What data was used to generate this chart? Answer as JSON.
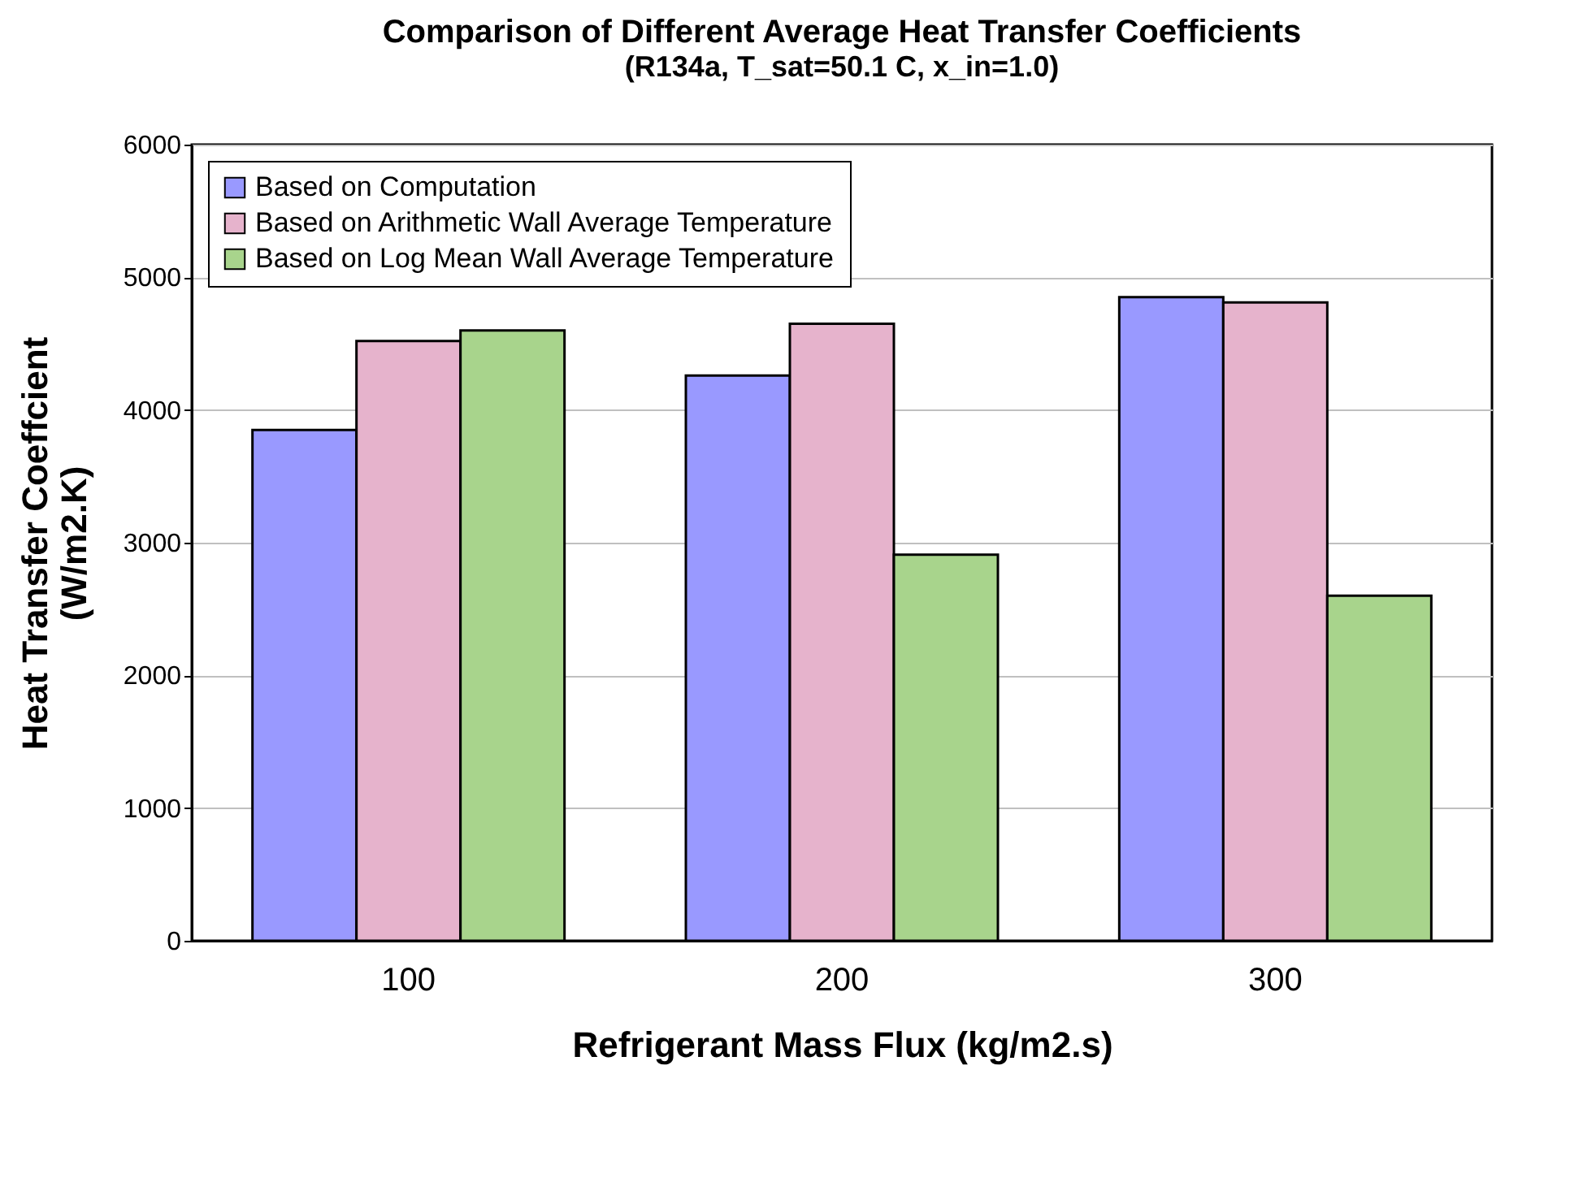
{
  "chart_data": {
    "type": "bar",
    "title": "Comparison of Different Average Heat Transfer Coefficients",
    "subtitle": "(R134a, T_sat=50.1 C, x_in=1.0)",
    "xlabel": "Refrigerant Mass Flux (kg/m2.s)",
    "ylabel": "Heat Transfer Coeffcient (W/m2.K)",
    "categories": [
      "100",
      "200",
      "300"
    ],
    "series": [
      {
        "name": "Based on Computation",
        "color": "#9999ff",
        "values": [
          3850,
          4260,
          4850
        ]
      },
      {
        "name": "Based on Arithmetic Wall Average Temperature",
        "color": "#e6b3cc",
        "values": [
          4520,
          4650,
          4810
        ]
      },
      {
        "name": "Based on Log Mean Wall Average Temperature",
        "color": "#a8d48c",
        "values": [
          4600,
          2910,
          2600
        ]
      }
    ],
    "ylim": [
      0,
      6000
    ],
    "yticks": [
      0,
      1000,
      2000,
      3000,
      4000,
      5000,
      6000
    ],
    "grid": "y",
    "legend": "top left"
  }
}
